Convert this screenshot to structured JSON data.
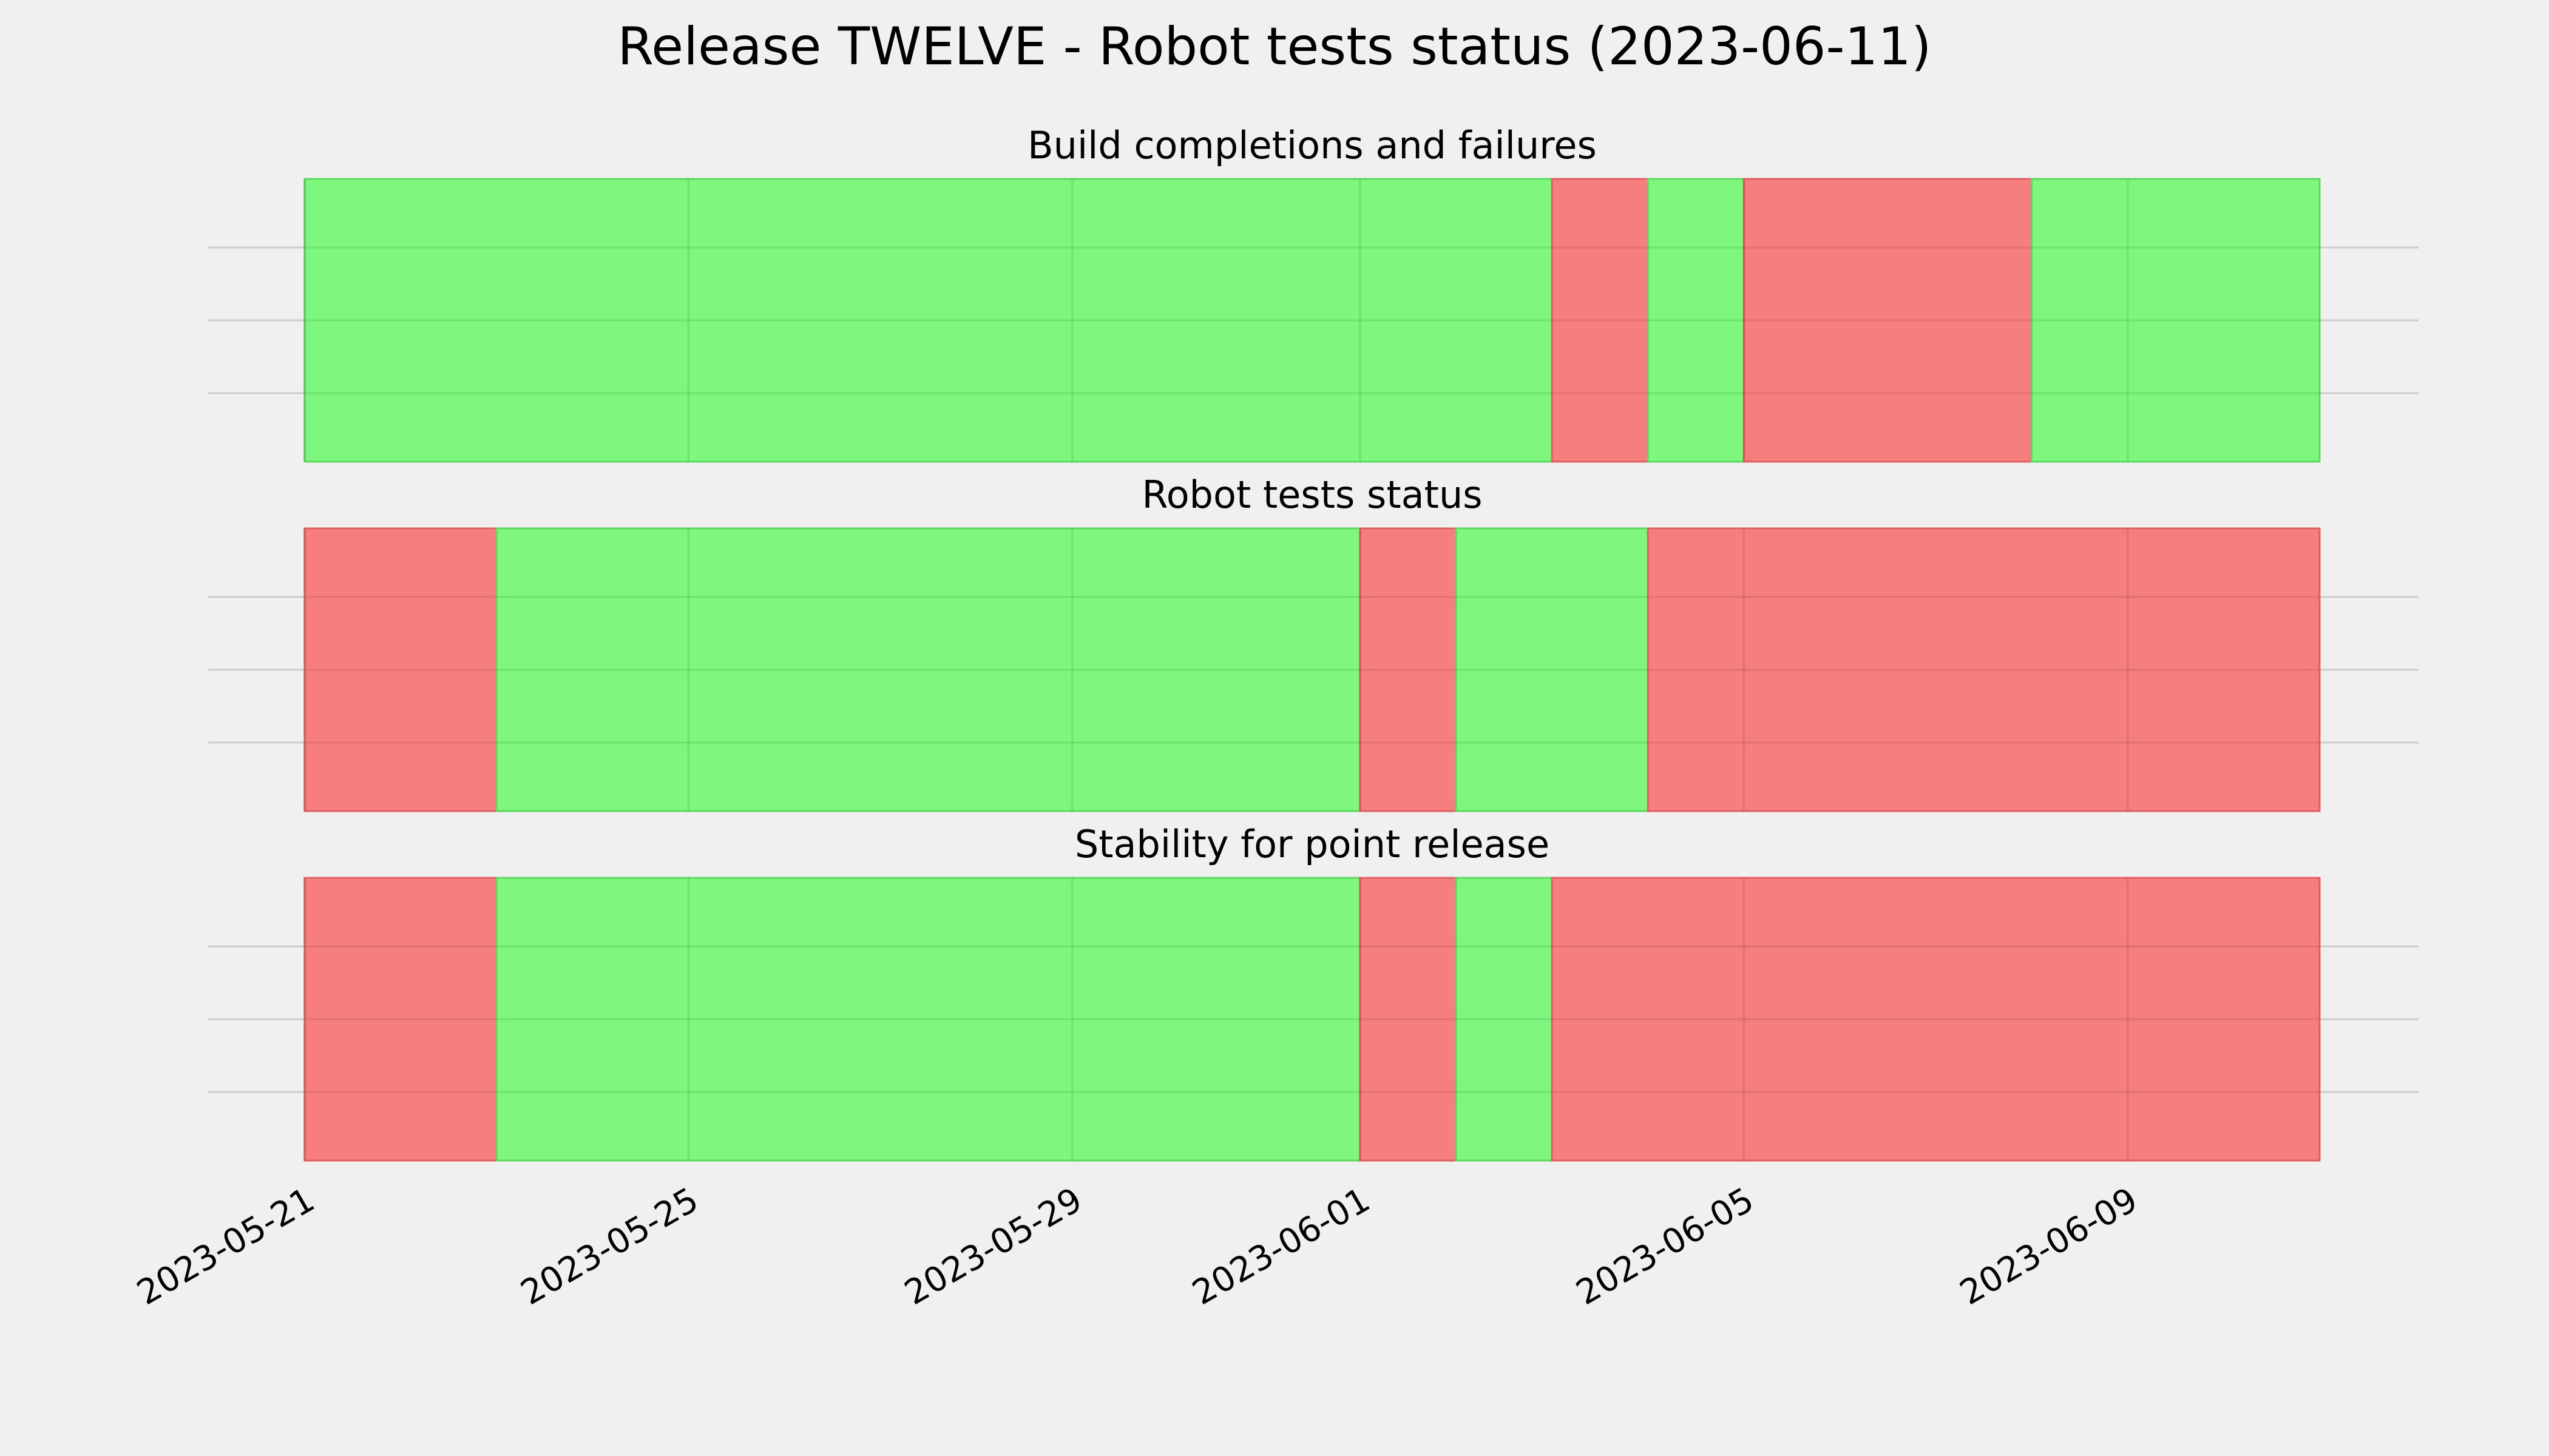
{
  "chart_data": {
    "type": "status-timeline",
    "title": "Release TWELVE - Robot tests status (2023-06-11)",
    "x_range": [
      "2023-05-21",
      "2023-06-11"
    ],
    "x_ticks": [
      "2023-05-21",
      "2023-05-25",
      "2023-05-29",
      "2023-06-01",
      "2023-06-05",
      "2023-06-09"
    ],
    "grid": true,
    "colors": {
      "pass": "#77f777",
      "fail": "#f77777",
      "background": "#f0f0f0",
      "grid": "#cccccc"
    },
    "panels": [
      {
        "title": "Build completions and failures",
        "segments": [
          {
            "start": "2023-05-21",
            "end": "2023-06-03",
            "status": "pass"
          },
          {
            "start": "2023-06-03",
            "end": "2023-06-04",
            "status": "fail"
          },
          {
            "start": "2023-06-04",
            "end": "2023-06-05",
            "status": "pass"
          },
          {
            "start": "2023-06-05",
            "end": "2023-06-08",
            "status": "fail"
          },
          {
            "start": "2023-06-08",
            "end": "2023-06-11",
            "status": "pass"
          }
        ]
      },
      {
        "title": "Robot tests status",
        "segments": [
          {
            "start": "2023-05-21",
            "end": "2023-05-23",
            "status": "fail"
          },
          {
            "start": "2023-05-23",
            "end": "2023-06-01",
            "status": "pass"
          },
          {
            "start": "2023-06-01",
            "end": "2023-06-02",
            "status": "fail"
          },
          {
            "start": "2023-06-02",
            "end": "2023-06-04",
            "status": "pass"
          },
          {
            "start": "2023-06-04",
            "end": "2023-06-11",
            "status": "fail"
          }
        ]
      },
      {
        "title": "Stability for point release",
        "segments": [
          {
            "start": "2023-05-21",
            "end": "2023-05-23",
            "status": "fail"
          },
          {
            "start": "2023-05-23",
            "end": "2023-06-01",
            "status": "pass"
          },
          {
            "start": "2023-06-01",
            "end": "2023-06-02",
            "status": "fail"
          },
          {
            "start": "2023-06-02",
            "end": "2023-06-03",
            "status": "pass"
          },
          {
            "start": "2023-06-03",
            "end": "2023-06-11",
            "status": "fail"
          }
        ]
      }
    ]
  }
}
